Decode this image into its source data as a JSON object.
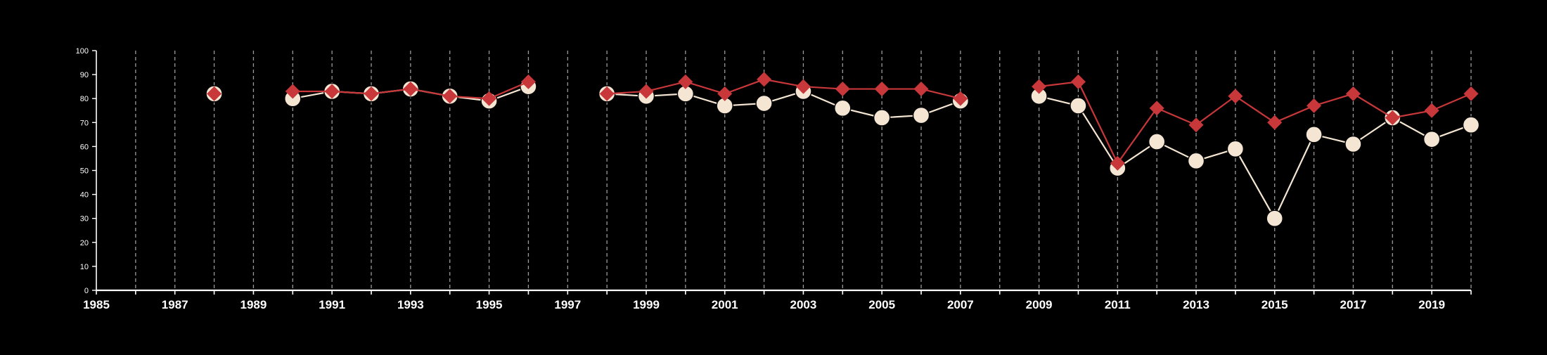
{
  "colors": {
    "background": "#000000",
    "axis": "#ffffff",
    "grid": "#9a9a9a",
    "series_a": "#f5e6d3",
    "series_b": "#c8373a"
  },
  "chart_data": {
    "type": "line",
    "title": "",
    "xlabel": "",
    "ylabel": "",
    "xlim": [
      1985,
      2020
    ],
    "ylim": [
      0,
      100
    ],
    "x_ticks": [
      1985,
      1987,
      1989,
      1991,
      1993,
      1995,
      1997,
      1999,
      2001,
      2003,
      2005,
      2007,
      2009,
      2011,
      2013,
      2015,
      2017,
      2019
    ],
    "y_ticks": [
      0,
      10,
      20,
      30,
      40,
      50,
      60,
      70,
      80,
      90,
      100
    ],
    "grid": "vertical dashed lines at each year",
    "legend": "none",
    "series": [
      {
        "marker": "circle",
        "color": "#f5e6d3",
        "points": [
          [
            1988,
            82
          ],
          [
            1990,
            80
          ],
          [
            1991,
            83
          ],
          [
            1992,
            82
          ],
          [
            1993,
            84
          ],
          [
            1994,
            81
          ],
          [
            1995,
            79
          ],
          [
            1996,
            85
          ],
          [
            1998,
            82
          ],
          [
            1999,
            81
          ],
          [
            2000,
            82
          ],
          [
            2001,
            77
          ],
          [
            2002,
            78
          ],
          [
            2003,
            83
          ],
          [
            2004,
            76
          ],
          [
            2005,
            72
          ],
          [
            2006,
            73
          ],
          [
            2007,
            79
          ],
          [
            2009,
            81
          ],
          [
            2010,
            77
          ],
          [
            2011,
            51
          ],
          [
            2012,
            62
          ],
          [
            2013,
            54
          ],
          [
            2014,
            59
          ],
          [
            2015,
            30
          ],
          [
            2016,
            65
          ],
          [
            2017,
            61
          ],
          [
            2018,
            72
          ],
          [
            2019,
            63
          ],
          [
            2020,
            69
          ]
        ]
      },
      {
        "marker": "diamond",
        "color": "#c8373a",
        "points": [
          [
            1988,
            82
          ],
          [
            1990,
            83
          ],
          [
            1991,
            83
          ],
          [
            1992,
            82
          ],
          [
            1993,
            84
          ],
          [
            1994,
            81
          ],
          [
            1995,
            80
          ],
          [
            1996,
            87
          ],
          [
            1998,
            82
          ],
          [
            1999,
            83
          ],
          [
            2000,
            87
          ],
          [
            2001,
            82
          ],
          [
            2002,
            88
          ],
          [
            2003,
            85
          ],
          [
            2004,
            84
          ],
          [
            2005,
            84
          ],
          [
            2006,
            84
          ],
          [
            2007,
            80
          ],
          [
            2009,
            85
          ],
          [
            2010,
            87
          ],
          [
            2011,
            53
          ],
          [
            2012,
            76
          ],
          [
            2013,
            69
          ],
          [
            2014,
            81
          ],
          [
            2015,
            70
          ],
          [
            2016,
            77
          ],
          [
            2017,
            82
          ],
          [
            2018,
            72
          ],
          [
            2019,
            75
          ],
          [
            2020,
            82
          ]
        ]
      }
    ]
  }
}
